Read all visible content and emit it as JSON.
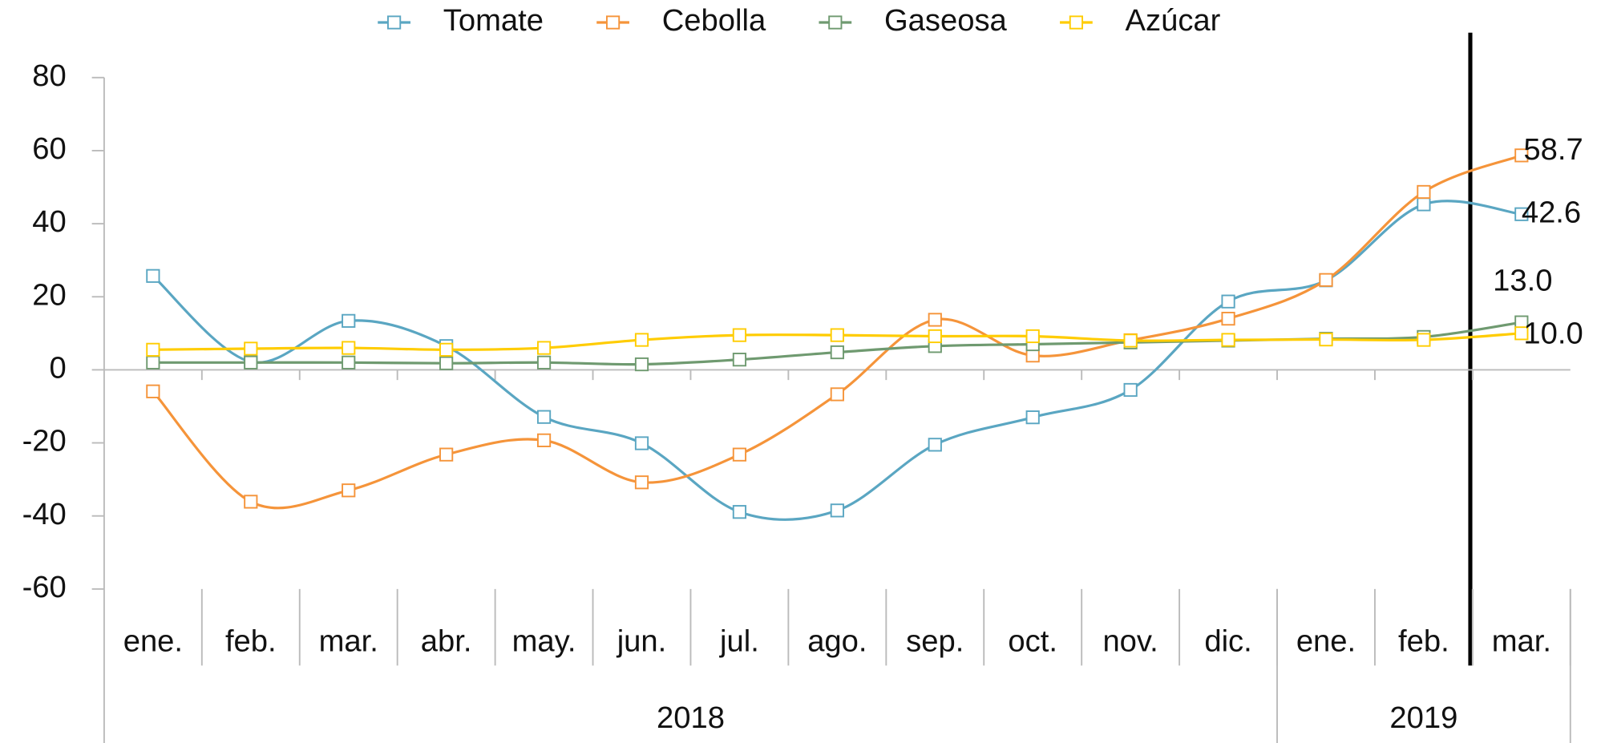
{
  "chart_data": {
    "type": "line",
    "categories": [
      "ene.",
      "feb.",
      "mar.",
      "abr.",
      "may.",
      "jun.",
      "jul.",
      "ago.",
      "sep.",
      "oct.",
      "nov.",
      "dic.",
      "ene.",
      "feb.",
      "mar."
    ],
    "groups": [
      {
        "label": "2018",
        "count": 12
      },
      {
        "label": "2019",
        "count": 3
      }
    ],
    "series": [
      {
        "name": "Tomate",
        "color": "#5aa6c2",
        "values": [
          25.7,
          2.2,
          13.4,
          6.5,
          -12.9,
          -20.1,
          -38.9,
          -38.5,
          -20.5,
          -13,
          -5.5,
          18.7,
          24.5,
          45.3,
          42.6
        ],
        "value_labels": [
          null,
          null,
          null,
          null,
          null,
          null,
          null,
          null,
          null,
          null,
          null,
          null,
          null,
          null,
          "42.6"
        ]
      },
      {
        "name": "Cebolla",
        "color": "#f5943a",
        "values": [
          -5.9,
          -36.1,
          -33,
          -23.2,
          -19.3,
          -30.8,
          -23.2,
          -6.7,
          13.7,
          3.9,
          8.1,
          14,
          24.6,
          48.7,
          58.7
        ],
        "value_labels": [
          null,
          null,
          null,
          null,
          null,
          null,
          null,
          null,
          null,
          null,
          null,
          null,
          null,
          null,
          "58.7"
        ]
      },
      {
        "name": "Gaseosa",
        "color": "#6f9a70",
        "values": [
          2,
          2,
          2,
          1.8,
          2,
          1.5,
          2.8,
          4.8,
          6.5,
          7,
          7.5,
          8,
          8.5,
          9,
          13
        ],
        "value_labels": [
          null,
          null,
          null,
          null,
          null,
          null,
          null,
          null,
          null,
          null,
          null,
          null,
          null,
          null,
          "13.0"
        ]
      },
      {
        "name": "Azúcar",
        "color": "#ffcc00",
        "values": [
          5.5,
          5.8,
          6,
          5.5,
          6,
          8.2,
          9.5,
          9.5,
          9.2,
          9.2,
          8,
          8.2,
          8.3,
          8.2,
          10
        ],
        "value_labels": [
          null,
          null,
          null,
          null,
          null,
          null,
          null,
          null,
          null,
          null,
          null,
          null,
          null,
          null,
          "10.0"
        ]
      }
    ],
    "ylim": [
      -60,
      80
    ],
    "yticks": [
      -60,
      -40,
      -20,
      0,
      20,
      40,
      60,
      80
    ],
    "grid": false,
    "legend": "top"
  }
}
